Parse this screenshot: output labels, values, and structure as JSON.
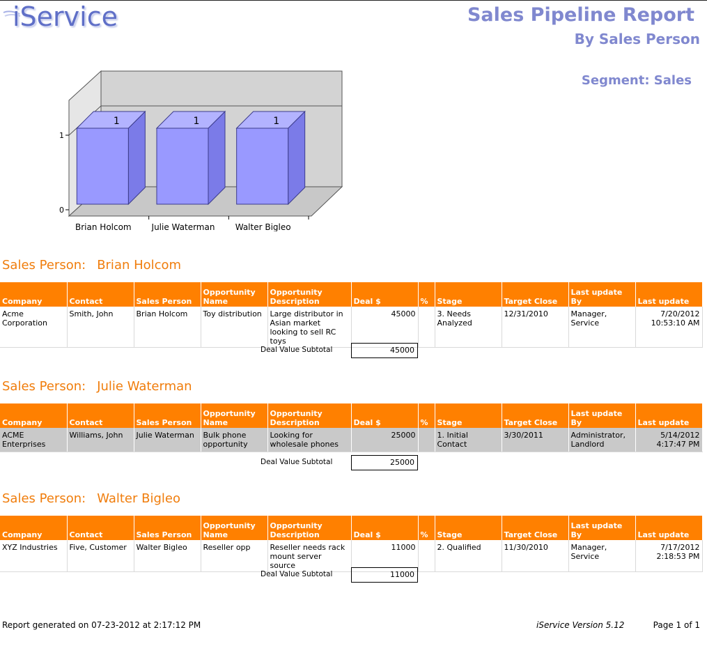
{
  "header": {
    "logo_text": "iService",
    "title": "Sales Pipeline Report",
    "subtitle": "By Sales Person",
    "segment": "Segment: Sales"
  },
  "colors": {
    "accent_orange": "#ff8000",
    "title_purple": "#8088cf",
    "bar_fill": "#9999ff"
  },
  "chart_data": {
    "type": "bar",
    "categories": [
      "Brian Holcom",
      "Julie Waterman",
      "Walter Bigleo"
    ],
    "values": [
      1,
      1,
      1
    ],
    "data_labels": [
      "1",
      "1",
      "1"
    ],
    "y_ticks": [
      "0",
      "1"
    ],
    "ylim": [
      0,
      1
    ],
    "style": "3d"
  },
  "labels": {
    "sales_person": "Sales Person:",
    "subtotal": "Deal Value Subtotal"
  },
  "columns": [
    "Company",
    "Contact",
    "Sales Person",
    "Opportunity Name",
    "Opportunity Description",
    "Deal $",
    "%",
    "Stage",
    "Target Close",
    "Last update By",
    "Last update"
  ],
  "groups": [
    {
      "name": "Brian Holcom",
      "subtotal": "45000",
      "rows": [
        {
          "company": "Acme Corporation",
          "contact": "Smith, John",
          "sales_person": "Brian Holcom",
          "opp_name": "Toy distribution",
          "opp_desc": "Large distributor in Asian market looking to sell RC toys",
          "deal": "45000",
          "pct": "",
          "stage": "3. Needs Analyzed",
          "target_close": "12/31/2010",
          "last_update_by": "Manager, Service",
          "last_update_date": "7/20/2012",
          "last_update_time": "10:53:10 AM"
        }
      ]
    },
    {
      "name": "Julie Waterman",
      "subtotal": "25000",
      "rows": [
        {
          "company": "ACME Enterprises",
          "contact": "Williams, John",
          "sales_person": "Julie Waterman",
          "opp_name": "Bulk phone opportunity",
          "opp_desc": "Looking for wholesale phones",
          "deal": "25000",
          "pct": "",
          "stage": "1. Initial Contact",
          "target_close": "3/30/2011",
          "last_update_by": "Administrator, Landlord",
          "last_update_date": "5/14/2012",
          "last_update_time": "4:17:47 PM"
        }
      ]
    },
    {
      "name": "Walter Bigleo",
      "subtotal": "11000",
      "rows": [
        {
          "company": "XYZ Industries",
          "contact": "Five, Customer",
          "sales_person": "Walter Bigleo",
          "opp_name": "Reseller opp",
          "opp_desc": "Reseller needs rack mount server source",
          "deal": "11000",
          "pct": "",
          "stage": "2. Qualified",
          "target_close": "11/30/2010",
          "last_update_by": "Manager, Service",
          "last_update_date": "7/17/2012",
          "last_update_time": "2:18:53 PM"
        }
      ]
    }
  ],
  "footer": {
    "generated": "Report generated on 07-23-2012 at 2:17:12 PM",
    "version": "iService Version 5.12",
    "page": "Page 1 of 1"
  }
}
